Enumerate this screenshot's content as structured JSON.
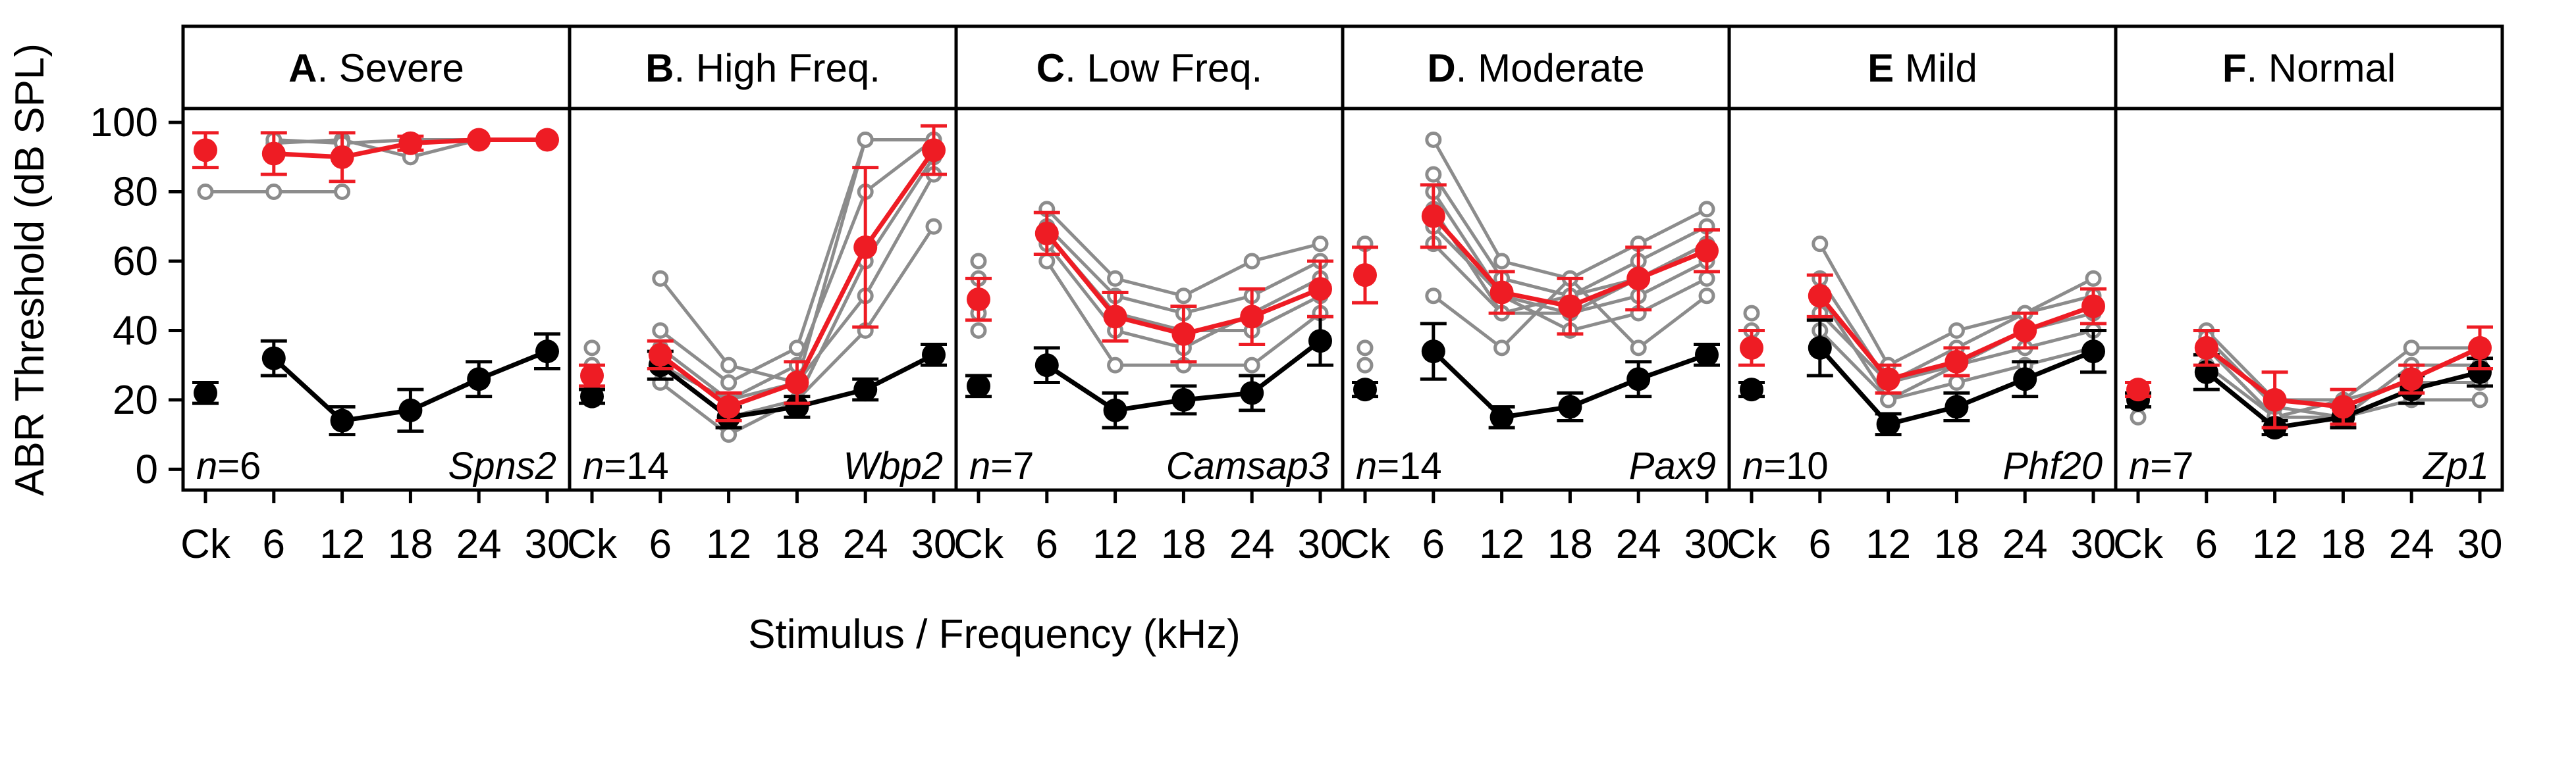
{
  "ylabel": "ABR Threshold (dB SPL)",
  "xlabel": "Stimulus / Frequency (kHz)",
  "x_tick_labels": [
    "Ck",
    "6",
    "12",
    "18",
    "24",
    "30"
  ],
  "y_tick_labels": [
    "0",
    "20",
    "40",
    "60",
    "80",
    "100"
  ],
  "colors": {
    "control": "#000000",
    "mutant_mean": "#ee1c24",
    "individual": "#8c8c8c"
  },
  "chart_data": [
    {
      "type": "line",
      "panel_letter": "A",
      "panel_name": ". Severe",
      "n_italic": "n",
      "n_value": "=6",
      "gene": "Spns2",
      "categories": [
        "Ck",
        "6",
        "12",
        "18",
        "24",
        "30"
      ],
      "ylim": [
        -6,
        104
      ],
      "series": [
        {
          "values": [
            22,
            32,
            14,
            17,
            26,
            34
          ],
          "errors": [
            3,
            5,
            4,
            6,
            5,
            5
          ]
        },
        {
          "values": [
            92,
            91,
            90,
            94,
            95,
            95
          ],
          "errors": [
            5,
            6,
            7,
            2,
            0,
            0
          ]
        }
      ],
      "individuals": [
        {
          "points": [
            [
              0,
              80
            ],
            [
              1,
              80
            ],
            [
              2,
              80
            ]
          ]
        },
        {
          "points": [
            [
              1,
              94
            ],
            [
              2,
              95
            ],
            [
              3,
              90
            ],
            [
              4,
              95
            ],
            [
              5,
              95
            ]
          ]
        },
        {
          "points": [
            [
              1,
              95
            ],
            [
              2,
              94
            ],
            [
              3,
              95
            ],
            [
              4,
              95
            ],
            [
              5,
              95
            ]
          ]
        }
      ]
    },
    {
      "type": "line",
      "panel_letter": "B",
      "panel_name": ". High Freq.",
      "n_italic": "n",
      "n_value": "=14",
      "gene": "Wbp2",
      "categories": [
        "Ck",
        "6",
        "12",
        "18",
        "24",
        "30"
      ],
      "ylim": [
        -6,
        104
      ],
      "series": [
        {
          "values": [
            21,
            30,
            15,
            18,
            23,
            33
          ],
          "errors": [
            2,
            4,
            3,
            3,
            3,
            3
          ]
        },
        {
          "values": [
            27,
            33,
            18,
            25,
            64,
            92
          ],
          "errors": [
            3,
            4,
            4,
            6,
            23,
            7
          ]
        }
      ],
      "individuals": [
        {
          "points": [
            [
              1,
              55
            ],
            [
              2,
              30
            ],
            [
              3,
              25
            ],
            [
              4,
              95
            ],
            [
              5,
              95
            ]
          ]
        },
        {
          "points": [
            [
              1,
              40
            ],
            [
              2,
              25
            ],
            [
              3,
              35
            ],
            [
              4,
              95
            ],
            [
              5,
              95
            ]
          ]
        },
        {
          "points": [
            [
              1,
              35
            ],
            [
              2,
              20
            ],
            [
              3,
              30
            ],
            [
              4,
              80
            ],
            [
              5,
              95
            ]
          ]
        },
        {
          "points": [
            [
              1,
              30
            ],
            [
              2,
              15
            ],
            [
              3,
              20
            ],
            [
              4,
              60
            ],
            [
              5,
              90
            ]
          ]
        },
        {
          "points": [
            [
              1,
              25
            ],
            [
              2,
              10
            ],
            [
              3,
              20
            ],
            [
              4,
              40
            ],
            [
              5,
              70
            ]
          ]
        },
        {
          "points": [
            [
              1,
              30
            ],
            [
              2,
              20
            ],
            [
              3,
              25
            ],
            [
              4,
              50
            ],
            [
              5,
              85
            ]
          ]
        }
      ],
      "ck_points": [
        35,
        30,
        25
      ]
    },
    {
      "type": "line",
      "panel_letter": "C",
      "panel_name": ". Low Freq.",
      "n_italic": "n",
      "n_value": "=7",
      "gene": "Camsap3",
      "categories": [
        "Ck",
        "6",
        "12",
        "18",
        "24",
        "30"
      ],
      "ylim": [
        -6,
        104
      ],
      "series": [
        {
          "values": [
            24,
            30,
            17,
            20,
            22,
            37
          ],
          "errors": [
            3,
            5,
            5,
            4,
            5,
            7
          ]
        },
        {
          "values": [
            49,
            68,
            44,
            39,
            44,
            52
          ],
          "errors": [
            6,
            6,
            7,
            8,
            8,
            8
          ]
        }
      ],
      "individuals": [
        {
          "points": [
            [
              1,
              75
            ],
            [
              2,
              55
            ],
            [
              3,
              50
            ],
            [
              4,
              60
            ],
            [
              5,
              65
            ]
          ]
        },
        {
          "points": [
            [
              1,
              70
            ],
            [
              2,
              50
            ],
            [
              3,
              45
            ],
            [
              4,
              50
            ],
            [
              5,
              60
            ]
          ]
        },
        {
          "points": [
            [
              1,
              65
            ],
            [
              2,
              40
            ],
            [
              3,
              35
            ],
            [
              4,
              45
            ],
            [
              5,
              55
            ]
          ]
        },
        {
          "points": [
            [
              1,
              60
            ],
            [
              2,
              30
            ],
            [
              3,
              30
            ],
            [
              4,
              30
            ],
            [
              5,
              45
            ]
          ]
        },
        {
          "points": [
            [
              1,
              68
            ],
            [
              2,
              45
            ],
            [
              3,
              40
            ],
            [
              4,
              40
            ],
            [
              5,
              50
            ]
          ]
        }
      ],
      "ck_points": [
        60,
        55,
        45,
        40
      ]
    },
    {
      "type": "line",
      "panel_letter": "D",
      "panel_name": ". Moderate",
      "n_italic": "n",
      "n_value": "=14",
      "gene": "Pax9",
      "categories": [
        "Ck",
        "6",
        "12",
        "18",
        "24",
        "30"
      ],
      "ylim": [
        -6,
        104
      ],
      "series": [
        {
          "values": [
            23,
            34,
            15,
            18,
            26,
            33
          ],
          "errors": [
            2,
            8,
            3,
            4,
            5,
            3
          ]
        },
        {
          "values": [
            56,
            73,
            51,
            47,
            55,
            63
          ],
          "errors": [
            8,
            9,
            6,
            8,
            9,
            6
          ]
        }
      ],
      "individuals": [
        {
          "points": [
            [
              1,
              95
            ],
            [
              2,
              60
            ],
            [
              3,
              55
            ],
            [
              4,
              65
            ],
            [
              5,
              75
            ]
          ]
        },
        {
          "points": [
            [
              1,
              85
            ],
            [
              2,
              55
            ],
            [
              3,
              50
            ],
            [
              4,
              60
            ],
            [
              5,
              70
            ]
          ]
        },
        {
          "points": [
            [
              1,
              80
            ],
            [
              2,
              50
            ],
            [
              3,
              45
            ],
            [
              4,
              55
            ],
            [
              5,
              65
            ]
          ]
        },
        {
          "points": [
            [
              1,
              75
            ],
            [
              2,
              45
            ],
            [
              3,
              45
            ],
            [
              4,
              50
            ],
            [
              5,
              60
            ]
          ]
        },
        {
          "points": [
            [
              1,
              70
            ],
            [
              2,
              50
            ],
            [
              3,
              40
            ],
            [
              4,
              45
            ],
            [
              5,
              55
            ]
          ]
        },
        {
          "points": [
            [
              1,
              50
            ],
            [
              2,
              35
            ],
            [
              3,
              55
            ],
            [
              4,
              35
            ],
            [
              5,
              50
            ]
          ]
        },
        {
          "points": [
            [
              1,
              65
            ],
            [
              2,
              45
            ],
            [
              3,
              50
            ],
            [
              4,
              55
            ],
            [
              5,
              65
            ]
          ]
        }
      ],
      "ck_points": [
        65,
        55,
        35,
        30
      ]
    },
    {
      "type": "line",
      "panel_letter": "E",
      "panel_name": " Mild",
      "n_italic": "n",
      "n_value": "=10",
      "gene": "Phf20",
      "categories": [
        "Ck",
        "6",
        "12",
        "18",
        "24",
        "30"
      ],
      "ylim": [
        -6,
        104
      ],
      "series": [
        {
          "values": [
            23,
            35,
            13,
            18,
            26,
            34
          ],
          "errors": [
            2,
            8,
            3,
            4,
            5,
            6
          ]
        },
        {
          "values": [
            35,
            50,
            26,
            31,
            40,
            47
          ],
          "errors": [
            5,
            6,
            4,
            4,
            5,
            5
          ]
        }
      ],
      "individuals": [
        {
          "points": [
            [
              1,
              65
            ],
            [
              2,
              30
            ],
            [
              3,
              40
            ],
            [
              4,
              45
            ],
            [
              5,
              55
            ]
          ]
        },
        {
          "points": [
            [
              1,
              55
            ],
            [
              2,
              25
            ],
            [
              3,
              35
            ],
            [
              4,
              45
            ],
            [
              5,
              50
            ]
          ]
        },
        {
          "points": [
            [
              1,
              50
            ],
            [
              2,
              20
            ],
            [
              3,
              30
            ],
            [
              4,
              40
            ],
            [
              5,
              45
            ]
          ]
        },
        {
          "points": [
            [
              1,
              45
            ],
            [
              2,
              25
            ],
            [
              3,
              30
            ],
            [
              4,
              35
            ],
            [
              5,
              40
            ]
          ]
        },
        {
          "points": [
            [
              1,
              40
            ],
            [
              2,
              20
            ],
            [
              3,
              25
            ],
            [
              4,
              30
            ],
            [
              5,
              35
            ]
          ]
        }
      ],
      "ck_points": [
        45,
        40,
        35
      ]
    },
    {
      "type": "line",
      "panel_letter": "F",
      "panel_name": ". Normal",
      "n_italic": "n",
      "n_value": "=7",
      "gene": "Zp1",
      "categories": [
        "Ck",
        "6",
        "12",
        "18",
        "24",
        "30"
      ],
      "ylim": [
        -6,
        104
      ],
      "series": [
        {
          "values": [
            20,
            28,
            12,
            15,
            23,
            28
          ],
          "errors": [
            2,
            5,
            2,
            3,
            4,
            4
          ]
        },
        {
          "values": [
            23,
            35,
            20,
            18,
            26,
            35
          ],
          "errors": [
            2,
            5,
            8,
            5,
            4,
            6
          ]
        }
      ],
      "individuals": [
        {
          "points": [
            [
              1,
              40
            ],
            [
              2,
              20
            ],
            [
              3,
              20
            ],
            [
              4,
              35
            ],
            [
              5,
              35
            ]
          ]
        },
        {
          "points": [
            [
              1,
              35
            ],
            [
              2,
              15
            ],
            [
              3,
              15
            ],
            [
              4,
              30
            ],
            [
              5,
              30
            ]
          ]
        },
        {
          "points": [
            [
              1,
              30
            ],
            [
              2,
              15
            ],
            [
              3,
              20
            ],
            [
              4,
              25
            ],
            [
              5,
              25
            ]
          ]
        },
        {
          "points": [
            [
              1,
              38
            ],
            [
              2,
              18
            ],
            [
              3,
              15
            ],
            [
              4,
              20
            ],
            [
              5,
              20
            ]
          ]
        }
      ],
      "ck_points": [
        15,
        20
      ]
    }
  ]
}
